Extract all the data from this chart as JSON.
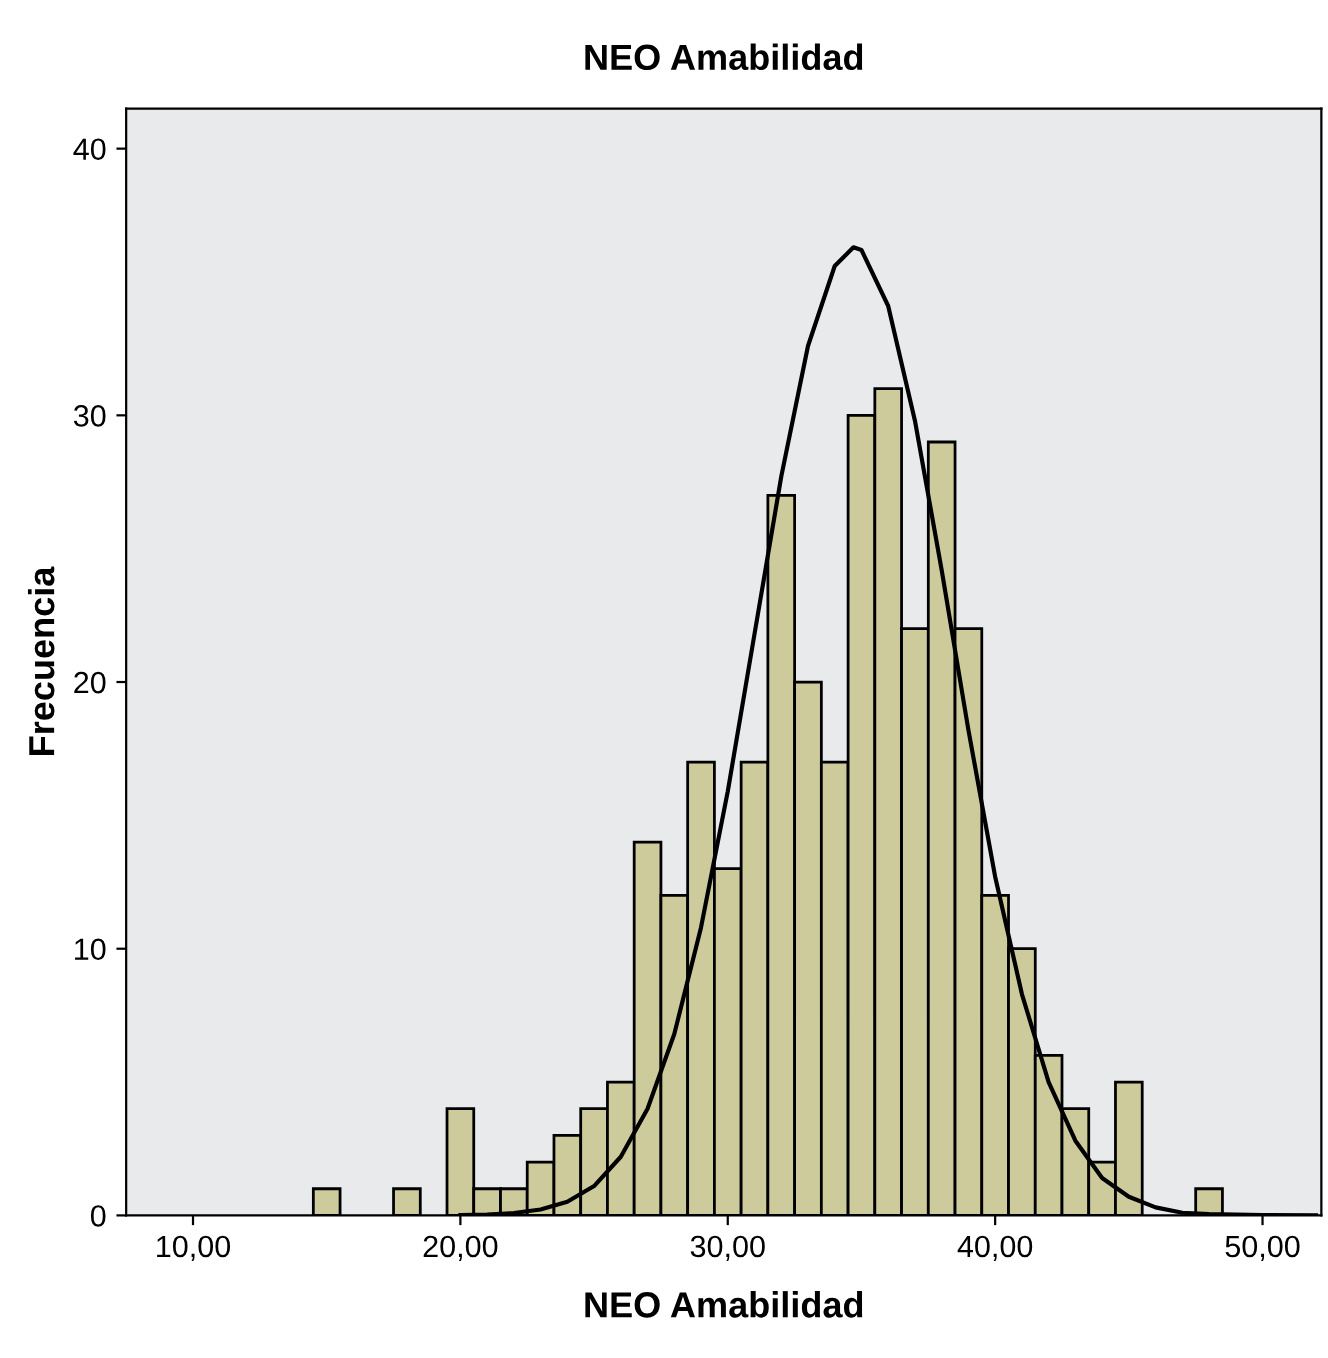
{
  "chart_data": {
    "type": "histogram",
    "title": "NEO Amabilidad",
    "xlabel": "NEO Amabilidad",
    "ylabel": "Frecuencia",
    "xlim": [
      7.5,
      52.2
    ],
    "ylim": [
      0,
      41.5
    ],
    "xticks": [
      {
        "value": 10,
        "label": "10,00"
      },
      {
        "value": 20,
        "label": "20,00"
      },
      {
        "value": 30,
        "label": "30,00"
      },
      {
        "value": 40,
        "label": "40,00"
      },
      {
        "value": 50,
        "label": "50,00"
      }
    ],
    "yticks": [
      0,
      10,
      20,
      30,
      40
    ],
    "grid": false,
    "legend": false,
    "series": [
      {
        "color": "#cdcb9b",
        "bins": [
          14.5,
          15.5,
          16.5,
          17.5,
          18.5,
          19.5,
          20.5,
          21.5,
          22.5,
          23.5,
          24.5,
          25.5,
          26.5,
          27.5,
          28.5,
          29.5,
          30.5,
          31.5,
          32.5,
          33.5,
          34.5,
          35.5,
          36.5,
          37.5,
          38.5,
          39.5,
          40.5,
          41.5,
          42.5,
          43.5,
          44.5,
          45.5,
          46.5,
          47.5,
          48.5
        ],
        "values": [
          1,
          0,
          0,
          1,
          0,
          4,
          1,
          1,
          2,
          3,
          4,
          5,
          14,
          12,
          17,
          13,
          17,
          27,
          20,
          17,
          30,
          31,
          22,
          29,
          22,
          12,
          10,
          6,
          4,
          2,
          5,
          0,
          0,
          1
        ]
      },
      {
        "type": "line",
        "color": "#000000",
        "x": [
          20,
          21,
          22,
          23,
          24,
          25,
          26,
          27,
          28,
          29,
          30,
          31,
          32,
          33,
          34,
          34.7,
          35,
          36,
          37,
          38,
          39,
          40,
          41,
          42,
          43,
          44,
          45,
          46,
          47,
          48,
          50,
          52
        ],
        "values": [
          0.01,
          0.03,
          0.09,
          0.22,
          0.51,
          1.1,
          2.2,
          4.0,
          6.8,
          10.8,
          15.9,
          21.8,
          27.7,
          32.6,
          35.6,
          36.3,
          36.2,
          34.1,
          29.8,
          24.2,
          18.2,
          12.7,
          8.3,
          5.0,
          2.8,
          1.4,
          0.7,
          0.3,
          0.1,
          0.05,
          0.01,
          0
        ]
      }
    ]
  }
}
